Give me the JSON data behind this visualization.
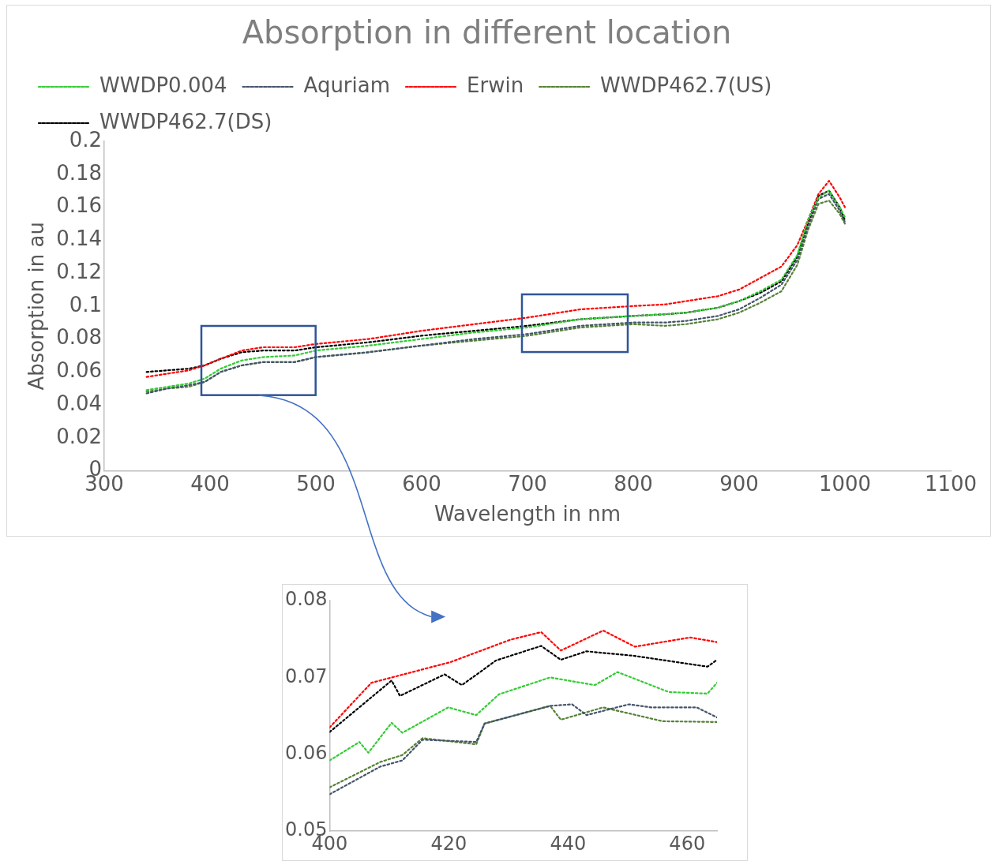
{
  "chart_data": [
    {
      "type": "line",
      "title": "Absorption in different location",
      "xlabel": "Wavelength in nm",
      "ylabel": "Absorption in au",
      "x": [
        340,
        360,
        380,
        395,
        410,
        430,
        450,
        480,
        500,
        550,
        600,
        650,
        700,
        750,
        800,
        830,
        850,
        880,
        900,
        920,
        940,
        955,
        965,
        975,
        985,
        995,
        1000
      ],
      "series": [
        {
          "name": "WWDP0.004",
          "color": "#33cc33",
          "values": [
            0.049,
            0.051,
            0.053,
            0.056,
            0.062,
            0.067,
            0.069,
            0.07,
            0.073,
            0.076,
            0.08,
            0.084,
            0.087,
            0.092,
            0.094,
            0.095,
            0.096,
            0.099,
            0.103,
            0.109,
            0.116,
            0.131,
            0.152,
            0.166,
            0.17,
            0.16,
            0.154
          ]
        },
        {
          "name": "Aquriam",
          "color": "#44546a",
          "values": [
            0.047,
            0.05,
            0.052,
            0.054,
            0.06,
            0.064,
            0.066,
            0.066,
            0.069,
            0.072,
            0.076,
            0.08,
            0.083,
            0.088,
            0.09,
            0.09,
            0.091,
            0.094,
            0.098,
            0.105,
            0.113,
            0.128,
            0.148,
            0.165,
            0.168,
            0.158,
            0.151
          ]
        },
        {
          "name": "Erwin",
          "color": "#ff0000",
          "values": [
            0.057,
            0.059,
            0.061,
            0.064,
            0.068,
            0.073,
            0.075,
            0.075,
            0.077,
            0.08,
            0.085,
            0.089,
            0.093,
            0.098,
            0.1,
            0.101,
            0.103,
            0.106,
            0.11,
            0.117,
            0.124,
            0.137,
            0.152,
            0.168,
            0.176,
            0.166,
            0.16
          ]
        },
        {
          "name": "WWDP462.7(US)",
          "color": "#548235",
          "values": [
            0.048,
            0.05,
            0.051,
            0.054,
            0.06,
            0.064,
            0.066,
            0.066,
            0.069,
            0.072,
            0.076,
            0.079,
            0.082,
            0.087,
            0.089,
            0.088,
            0.089,
            0.092,
            0.096,
            0.102,
            0.109,
            0.125,
            0.146,
            0.162,
            0.164,
            0.156,
            0.15
          ]
        },
        {
          "name": "WWDP462.7(DS)",
          "color": "#000000",
          "values": [
            0.06,
            0.061,
            0.062,
            0.064,
            0.068,
            0.072,
            0.073,
            0.073,
            0.075,
            0.078,
            0.082,
            0.085,
            0.088,
            0.092,
            0.094,
            0.095,
            0.096,
            0.099,
            0.103,
            0.108,
            0.115,
            0.13,
            0.15,
            0.167,
            0.17,
            0.16,
            0.152
          ]
        }
      ],
      "xlim": [
        300,
        1100
      ],
      "xticks": [
        300,
        400,
        500,
        600,
        700,
        800,
        900,
        1000,
        1100
      ],
      "ylim": [
        0,
        0.2
      ],
      "yticks": [
        0,
        0.02,
        0.04,
        0.06,
        0.08,
        0.1,
        0.12,
        0.14,
        0.16,
        0.18,
        0.2
      ],
      "grid": false,
      "legend": "top",
      "line_style": "dotted",
      "marker": "none"
    },
    {
      "type": "line",
      "series": [
        {
          "color": "#33cc33",
          "x": [
            400,
            405,
            406.5,
            410.4,
            412.2,
            419.9,
            424.6,
            428.4,
            437,
            444.5,
            448.3,
            456.9,
            463.4,
            465
          ],
          "values": [
            0.0592,
            0.0616,
            0.0602,
            0.0641,
            0.0628,
            0.0661,
            0.0651,
            0.0678,
            0.07,
            0.069,
            0.0707,
            0.0681,
            0.0679,
            0.0693
          ]
        },
        {
          "color": "#44546a",
          "x": [
            400,
            408.5,
            412.2,
            415.6,
            424.6,
            426,
            437,
            440.7,
            443.1,
            450.2,
            454,
            461.6,
            465
          ],
          "values": [
            0.0548,
            0.0584,
            0.0592,
            0.0619,
            0.0616,
            0.064,
            0.0663,
            0.0665,
            0.0651,
            0.0665,
            0.0661,
            0.0661,
            0.0648
          ]
        },
        {
          "color": "#ff0000",
          "x": [
            400,
            407,
            420.3,
            430.3,
            435.5,
            438.8,
            445.9,
            451.2,
            460.5,
            465
          ],
          "values": [
            0.0635,
            0.0693,
            0.072,
            0.0749,
            0.0759,
            0.0735,
            0.0761,
            0.074,
            0.0752,
            0.0746
          ]
        },
        {
          "color": "#548235",
          "x": [
            400,
            408.5,
            412.2,
            415.6,
            424.6,
            426,
            437,
            438.8,
            445.9,
            455.9,
            465
          ],
          "values": [
            0.0557,
            0.059,
            0.0599,
            0.0621,
            0.0613,
            0.064,
            0.0663,
            0.0645,
            0.0661,
            0.0643,
            0.0642
          ]
        },
        {
          "color": "#000000",
          "x": [
            400,
            410.4,
            411.8,
            419.3,
            422.2,
            427.9,
            435.5,
            438.8,
            443.1,
            451.2,
            463.4,
            465
          ],
          "values": [
            0.0629,
            0.0696,
            0.0676,
            0.0704,
            0.069,
            0.0722,
            0.0741,
            0.0723,
            0.0734,
            0.0728,
            0.0714,
            0.0723
          ]
        }
      ],
      "xlim": [
        400,
        465
      ],
      "xticks": [
        400,
        420,
        440,
        460
      ],
      "ylim": [
        0.05,
        0.08
      ],
      "yticks": [
        0.05,
        0.06,
        0.07,
        0.08
      ],
      "grid": false,
      "line_style": "dotted",
      "marker": "none"
    }
  ]
}
